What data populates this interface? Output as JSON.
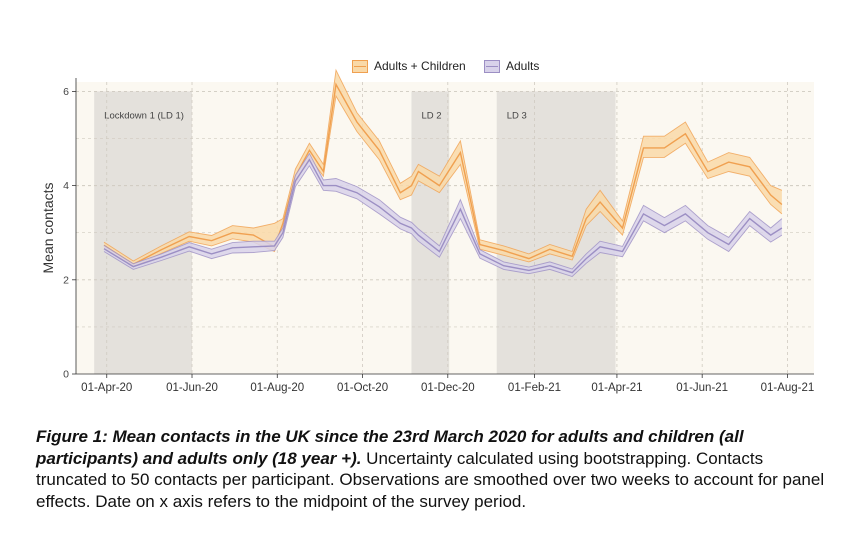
{
  "chart_data": {
    "type": "area",
    "ylabel": "Mean contacts",
    "ylim": [
      0,
      6.2
    ],
    "y_ticks": [
      0,
      2,
      4,
      6
    ],
    "x_ticks": [
      "01-Apr-20",
      "01-Jun-20",
      "01-Aug-20",
      "01-Oct-20",
      "01-Dec-20",
      "01-Feb-21",
      "01-Apr-21",
      "01-Jun-21",
      "01-Aug-21"
    ],
    "x_tick_dates": [
      "2020-04-01",
      "2020-06-01",
      "2020-08-01",
      "2020-10-01",
      "2020-12-01",
      "2021-02-01",
      "2021-04-01",
      "2021-06-01",
      "2021-08-01"
    ],
    "xlim": [
      "2020-03-10",
      "2021-08-20"
    ],
    "legend_position": "top",
    "lockdowns": [
      {
        "label": "Lockdown 1 (LD 1)",
        "start": "2020-03-23",
        "end": "2020-06-01"
      },
      {
        "label": "LD 2",
        "start": "2020-11-05",
        "end": "2020-12-02"
      },
      {
        "label": "LD 3",
        "start": "2021-01-05",
        "end": "2021-03-31"
      }
    ],
    "series": [
      {
        "name": "Adults + Children",
        "color": "#f0a050",
        "fill": "#f9d9a8",
        "points": [
          {
            "x": "2020-03-30",
            "mean": 2.73,
            "lower": 2.66,
            "upper": 2.8
          },
          {
            "x": "2020-04-20",
            "mean": 2.33,
            "lower": 2.27,
            "upper": 2.4
          },
          {
            "x": "2020-05-10",
            "mean": 2.64,
            "lower": 2.56,
            "upper": 2.72
          },
          {
            "x": "2020-05-30",
            "mean": 2.92,
            "lower": 2.82,
            "upper": 3.02
          },
          {
            "x": "2020-06-15",
            "mean": 2.83,
            "lower": 2.72,
            "upper": 2.94
          },
          {
            "x": "2020-06-30",
            "mean": 3.0,
            "lower": 2.87,
            "upper": 3.15
          },
          {
            "x": "2020-07-15",
            "mean": 2.95,
            "lower": 2.8,
            "upper": 3.1
          },
          {
            "x": "2020-07-30",
            "mean": 2.7,
            "lower": 2.6,
            "upper": 3.2
          },
          {
            "x": "2020-08-05",
            "mean": 3.2,
            "lower": 3.1,
            "upper": 3.3
          },
          {
            "x": "2020-08-14",
            "mean": 4.2,
            "lower": 4.05,
            "upper": 4.35
          },
          {
            "x": "2020-08-24",
            "mean": 4.75,
            "lower": 4.6,
            "upper": 4.9
          },
          {
            "x": "2020-09-03",
            "mean": 4.3,
            "lower": 4.2,
            "upper": 4.45
          },
          {
            "x": "2020-09-12",
            "mean": 6.15,
            "lower": 5.9,
            "upper": 6.45
          },
          {
            "x": "2020-09-27",
            "mean": 5.35,
            "lower": 5.15,
            "upper": 5.55
          },
          {
            "x": "2020-10-13",
            "mean": 4.75,
            "lower": 4.55,
            "upper": 4.95
          },
          {
            "x": "2020-10-28",
            "mean": 3.85,
            "lower": 3.7,
            "upper": 4.05
          },
          {
            "x": "2020-11-05",
            "mean": 4.0,
            "lower": 3.8,
            "upper": 4.2
          },
          {
            "x": "2020-11-10",
            "mean": 4.3,
            "lower": 4.1,
            "upper": 4.45
          },
          {
            "x": "2020-11-25",
            "mean": 4.0,
            "lower": 3.85,
            "upper": 4.2
          },
          {
            "x": "2020-12-10",
            "mean": 4.7,
            "lower": 4.45,
            "upper": 4.95
          },
          {
            "x": "2020-12-24",
            "mean": 2.75,
            "lower": 2.65,
            "upper": 2.85
          },
          {
            "x": "2021-01-10",
            "mean": 2.62,
            "lower": 2.52,
            "upper": 2.72
          },
          {
            "x": "2021-01-28",
            "mean": 2.45,
            "lower": 2.38,
            "upper": 2.55
          },
          {
            "x": "2021-02-12",
            "mean": 2.65,
            "lower": 2.55,
            "upper": 2.75
          },
          {
            "x": "2021-02-28",
            "mean": 2.5,
            "lower": 2.42,
            "upper": 2.6
          },
          {
            "x": "2021-03-10",
            "mean": 3.3,
            "lower": 3.15,
            "upper": 3.5
          },
          {
            "x": "2021-03-20",
            "mean": 3.65,
            "lower": 3.45,
            "upper": 3.9
          },
          {
            "x": "2021-04-05",
            "mean": 3.1,
            "lower": 2.95,
            "upper": 3.25
          },
          {
            "x": "2021-04-20",
            "mean": 4.8,
            "lower": 4.6,
            "upper": 5.05
          },
          {
            "x": "2021-05-05",
            "mean": 4.8,
            "lower": 4.6,
            "upper": 5.05
          },
          {
            "x": "2021-05-20",
            "mean": 5.1,
            "lower": 4.9,
            "upper": 5.35
          },
          {
            "x": "2021-06-05",
            "mean": 4.3,
            "lower": 4.15,
            "upper": 4.5
          },
          {
            "x": "2021-06-20",
            "mean": 4.5,
            "lower": 4.3,
            "upper": 4.7
          },
          {
            "x": "2021-07-05",
            "mean": 4.4,
            "lower": 4.2,
            "upper": 4.6
          },
          {
            "x": "2021-07-20",
            "mean": 3.8,
            "lower": 3.6,
            "upper": 4.0
          },
          {
            "x": "2021-07-28",
            "mean": 3.6,
            "lower": 3.4,
            "upper": 3.9
          }
        ]
      },
      {
        "name": "Adults",
        "color": "#9c8fc4",
        "fill": "#d8d2ea",
        "points": [
          {
            "x": "2020-03-30",
            "mean": 2.66,
            "lower": 2.6,
            "upper": 2.73
          },
          {
            "x": "2020-04-20",
            "mean": 2.28,
            "lower": 2.22,
            "upper": 2.34
          },
          {
            "x": "2020-05-10",
            "mean": 2.48,
            "lower": 2.41,
            "upper": 2.55
          },
          {
            "x": "2020-05-30",
            "mean": 2.7,
            "lower": 2.61,
            "upper": 2.79
          },
          {
            "x": "2020-06-15",
            "mean": 2.55,
            "lower": 2.45,
            "upper": 2.65
          },
          {
            "x": "2020-06-30",
            "mean": 2.68,
            "lower": 2.57,
            "upper": 2.79
          },
          {
            "x": "2020-07-15",
            "mean": 2.7,
            "lower": 2.58,
            "upper": 2.82
          },
          {
            "x": "2020-07-30",
            "mean": 2.72,
            "lower": 2.62,
            "upper": 2.82
          },
          {
            "x": "2020-08-05",
            "mean": 3.0,
            "lower": 2.9,
            "upper": 3.1
          },
          {
            "x": "2020-08-14",
            "mean": 4.1,
            "lower": 3.98,
            "upper": 4.22
          },
          {
            "x": "2020-08-24",
            "mean": 4.55,
            "lower": 4.42,
            "upper": 4.68
          },
          {
            "x": "2020-09-03",
            "mean": 4.0,
            "lower": 3.9,
            "upper": 4.12
          },
          {
            "x": "2020-09-12",
            "mean": 4.0,
            "lower": 3.88,
            "upper": 4.15
          },
          {
            "x": "2020-09-27",
            "mean": 3.85,
            "lower": 3.72,
            "upper": 3.98
          },
          {
            "x": "2020-10-13",
            "mean": 3.55,
            "lower": 3.4,
            "upper": 3.7
          },
          {
            "x": "2020-10-28",
            "mean": 3.2,
            "lower": 3.08,
            "upper": 3.33
          },
          {
            "x": "2020-11-05",
            "mean": 3.1,
            "lower": 2.98,
            "upper": 3.22
          },
          {
            "x": "2020-11-10",
            "mean": 2.95,
            "lower": 2.82,
            "upper": 3.08
          },
          {
            "x": "2020-11-25",
            "mean": 2.6,
            "lower": 2.48,
            "upper": 2.72
          },
          {
            "x": "2020-12-10",
            "mean": 3.5,
            "lower": 3.3,
            "upper": 3.7
          },
          {
            "x": "2020-12-24",
            "mean": 2.55,
            "lower": 2.46,
            "upper": 2.64
          },
          {
            "x": "2021-01-10",
            "mean": 2.3,
            "lower": 2.22,
            "upper": 2.38
          },
          {
            "x": "2021-01-28",
            "mean": 2.2,
            "lower": 2.13,
            "upper": 2.27
          },
          {
            "x": "2021-02-12",
            "mean": 2.3,
            "lower": 2.22,
            "upper": 2.38
          },
          {
            "x": "2021-02-28",
            "mean": 2.15,
            "lower": 2.07,
            "upper": 2.23
          },
          {
            "x": "2021-03-10",
            "mean": 2.45,
            "lower": 2.35,
            "upper": 2.55
          },
          {
            "x": "2021-03-20",
            "mean": 2.7,
            "lower": 2.58,
            "upper": 2.82
          },
          {
            "x": "2021-04-05",
            "mean": 2.6,
            "lower": 2.49,
            "upper": 2.71
          },
          {
            "x": "2021-04-20",
            "mean": 3.4,
            "lower": 3.25,
            "upper": 3.58
          },
          {
            "x": "2021-05-05",
            "mean": 3.15,
            "lower": 3.0,
            "upper": 3.32
          },
          {
            "x": "2021-05-20",
            "mean": 3.4,
            "lower": 3.25,
            "upper": 3.58
          },
          {
            "x": "2021-06-05",
            "mean": 3.0,
            "lower": 2.86,
            "upper": 3.15
          },
          {
            "x": "2021-06-20",
            "mean": 2.75,
            "lower": 2.6,
            "upper": 2.9
          },
          {
            "x": "2021-07-05",
            "mean": 3.3,
            "lower": 3.15,
            "upper": 3.45
          },
          {
            "x": "2021-07-20",
            "mean": 2.95,
            "lower": 2.8,
            "upper": 3.1
          },
          {
            "x": "2021-07-28",
            "mean": 3.1,
            "lower": 2.95,
            "upper": 3.3
          }
        ]
      }
    ]
  },
  "caption": {
    "lead": "Figure 1: Mean contacts in the UK since the 23rd March 2020 for adults and children (all participants) and adults only (18 year +).",
    "body": " Uncertainty calculated using bootstrapping. Contacts truncated to 50 contacts per participant. Observations are smoothed over two weeks to account for panel effects. Date on x axis refers to the midpoint of the survey period."
  }
}
